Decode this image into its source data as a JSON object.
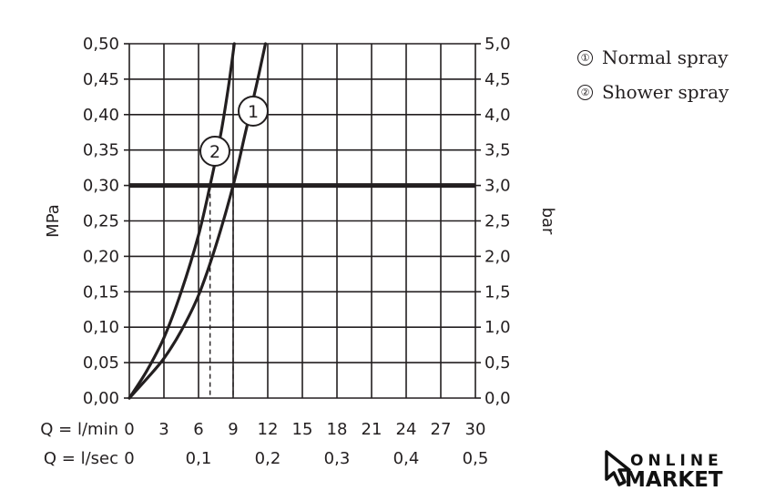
{
  "chart_data": {
    "type": "line",
    "y_left": {
      "label": "MPa",
      "range": [
        0,
        0.5
      ],
      "ticks": [
        "0,00",
        "0,05",
        "0,10",
        "0,15",
        "0,20",
        "0,25",
        "0,30",
        "0,35",
        "0,40",
        "0,45",
        "0,50"
      ]
    },
    "y_right": {
      "label": "bar",
      "range": [
        0,
        5
      ],
      "ticks": [
        "0,0",
        "0,5",
        "1,0",
        "1,5",
        "2,0",
        "2,5",
        "3,0",
        "3,5",
        "4,0",
        "4,5",
        "5,0"
      ]
    },
    "x_lmin": {
      "label": "Q = l/min",
      "range": [
        0,
        30
      ],
      "ticks": [
        "0",
        "3",
        "6",
        "9",
        "12",
        "15",
        "18",
        "21",
        "24",
        "27",
        "30"
      ]
    },
    "x_lsec": {
      "label": "Q = l/sec",
      "ticks": [
        "0",
        "0,1",
        "0,2",
        "0,3",
        "0,4",
        "0,5"
      ]
    },
    "grid": true,
    "series": [
      {
        "name": "Normal spray",
        "marker": "1",
        "x_unit": "l/min",
        "y_unit": "MPa",
        "x": [
          0,
          1.5,
          3,
          4.5,
          6,
          7.5,
          9,
          10,
          11,
          11.8
        ],
        "y": [
          0,
          0.027,
          0.056,
          0.095,
          0.145,
          0.215,
          0.3,
          0.37,
          0.44,
          0.5
        ]
      },
      {
        "name": "Shower spray",
        "marker": "2",
        "x_unit": "l/min",
        "y_unit": "MPa",
        "x": [
          0,
          1.5,
          3,
          4.5,
          6,
          7,
          7.9,
          8.6,
          9.1
        ],
        "y": [
          0,
          0.038,
          0.085,
          0.15,
          0.23,
          0.3,
          0.37,
          0.44,
          0.5
        ]
      }
    ],
    "reference_line": {
      "y": 0.3
    },
    "drop_lines_x": [
      7.0,
      9.0
    ]
  },
  "legend": [
    {
      "marker": "①",
      "label": "Normal spray"
    },
    {
      "marker": "②",
      "label": "Shower spray"
    }
  ],
  "logo": {
    "line1": "ONLINE",
    "line2": "MARKET"
  }
}
